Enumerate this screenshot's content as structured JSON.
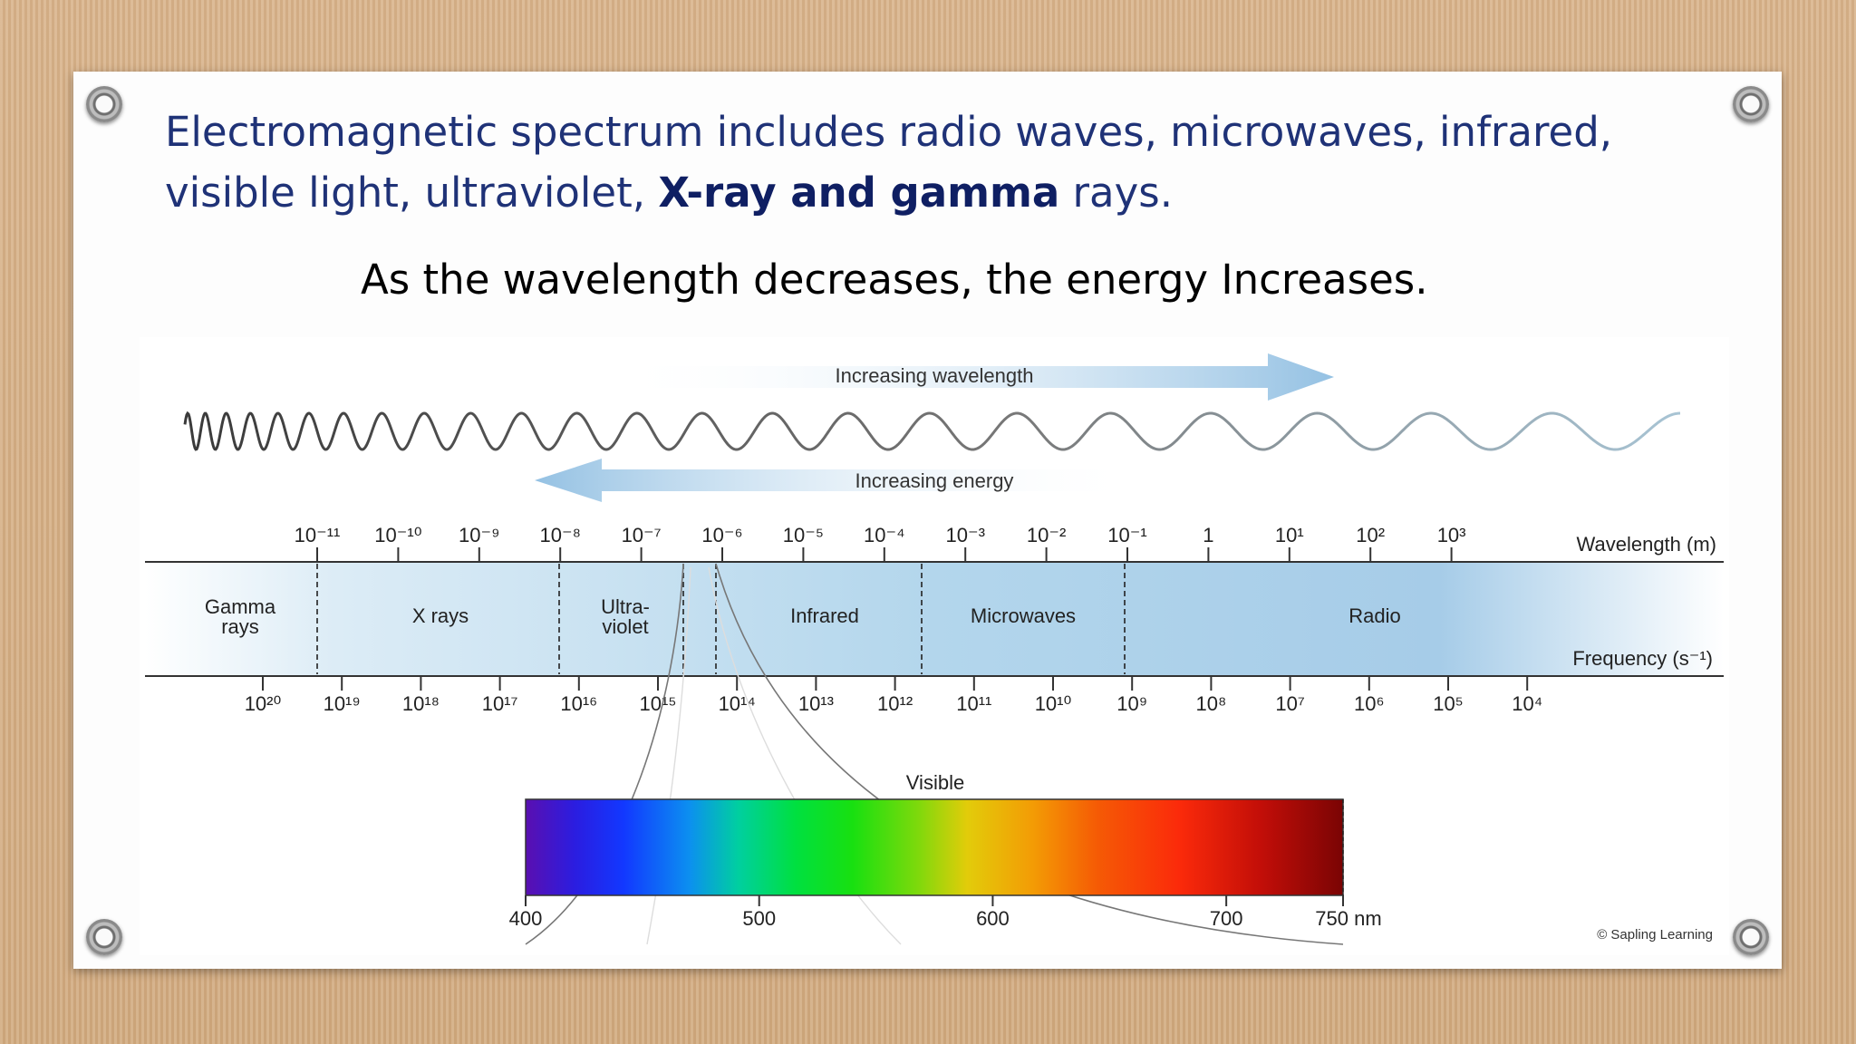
{
  "heading": {
    "part1": "Electromagnetic spectrum includes radio waves, microwaves, infrared,",
    "part2": "visible light, ultraviolet,",
    "emphasis": "X-ray and gamma",
    "part3": "rays."
  },
  "subheading": "As the wavelength decreases, the energy Increases.",
  "diagram": {
    "increasing_wavelength": "Increasing wavelength",
    "increasing_energy": "Increasing energy",
    "wavelength_axis_label": "Wavelength (m)",
    "frequency_axis_label": "Frequency (s⁻¹)",
    "wavelength_ticks": [
      "10⁻¹¹",
      "10⁻¹⁰",
      "10⁻⁹",
      "10⁻⁸",
      "10⁻⁷",
      "10⁻⁶",
      "10⁻⁵",
      "10⁻⁴",
      "10⁻³",
      "10⁻²",
      "10⁻¹",
      "1",
      "10¹",
      "10²",
      "10³"
    ],
    "frequency_ticks": [
      "10²⁰",
      "10¹⁹",
      "10¹⁸",
      "10¹⁷",
      "10¹⁶",
      "10¹⁵",
      "10¹⁴",
      "10¹³",
      "10¹²",
      "10¹¹",
      "10¹⁰",
      "10⁹",
      "10⁸",
      "10⁷",
      "10⁶",
      "10⁵",
      "10⁴"
    ],
    "regions": {
      "gamma_line1": "Gamma",
      "gamma_line2": "rays",
      "xrays": "X rays",
      "uv_line1": "Ultra-",
      "uv_line2": "violet",
      "infrared": "Infrared",
      "microwaves": "Microwaves",
      "radio": "Radio"
    },
    "visible_label": "Visible",
    "visible_ticks": [
      "400",
      "500",
      "600",
      "700",
      "750 nm"
    ],
    "credit": "© Sapling Learning"
  },
  "colors": {
    "heading_blue": "#1f3277",
    "band_blue": "#a9cde8",
    "arrow_blue": "#9cc6e6"
  }
}
